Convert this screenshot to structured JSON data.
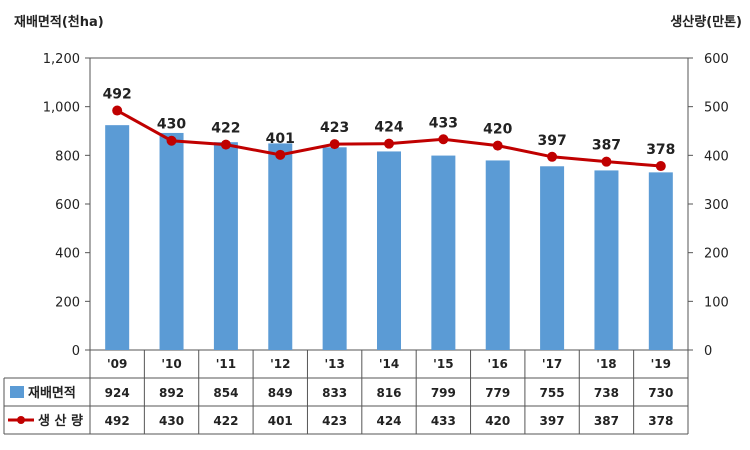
{
  "chart_data": {
    "type": "bar",
    "categories": [
      "'09",
      "'10",
      "'11",
      "'12",
      "'13",
      "'14",
      "'15",
      "'16",
      "'17",
      "'18",
      "'19"
    ],
    "series": [
      {
        "name": "재배면적",
        "type": "bar",
        "axis": "left",
        "values": [
          924,
          892,
          854,
          849,
          833,
          816,
          799,
          779,
          755,
          738,
          730
        ]
      },
      {
        "name": "생 산 량",
        "type": "line",
        "axis": "right",
        "values": [
          492,
          430,
          422,
          401,
          423,
          424,
          433,
          420,
          397,
          387,
          378
        ]
      }
    ],
    "left_axis": {
      "label": "재배면적(천ha)",
      "range": [
        0,
        1200
      ],
      "ticks": [
        "0",
        "200",
        "400",
        "600",
        "800",
        "1,000",
        "1,200"
      ]
    },
    "right_axis": {
      "label": "생산량(만톤)",
      "range": [
        0,
        600
      ],
      "ticks": [
        "0",
        "100",
        "200",
        "300",
        "400",
        "500",
        "600"
      ]
    },
    "grid": false,
    "legend_placement": "data table below",
    "colors": {
      "bar": "#5b9bd5",
      "line": "#c00000"
    }
  }
}
